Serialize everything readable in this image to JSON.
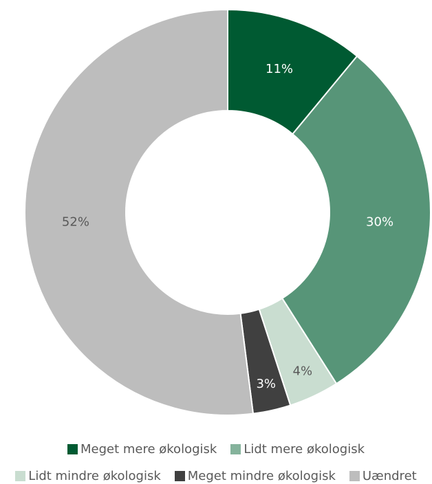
{
  "chart_data": {
    "type": "pie",
    "variant": "donut",
    "title": "",
    "categories": [
      "Meget mere økologisk",
      "Lidt mere økologisk",
      "Lidt mindre økologisk",
      "Meget mindre økologisk",
      "Uændret"
    ],
    "values": [
      11,
      30,
      4,
      3,
      52
    ],
    "value_labels": [
      "11%",
      "30%",
      "4%",
      "3%",
      "52%"
    ],
    "colors": [
      "#005a32",
      "#579578",
      "#c9ddd0",
      "#404040",
      "#bdbdbd"
    ],
    "label_colors": [
      "#ffffff",
      "#ffffff",
      "#595959",
      "#ffffff",
      "#595959"
    ],
    "legend_position": "bottom"
  },
  "legend": [
    {
      "label": "Meget mere økologisk",
      "color": "#005a32"
    },
    {
      "label": "Lidt mere økologisk",
      "color": "#85b39c"
    },
    {
      "label": "Lidt mindre økologisk",
      "color": "#c9ddd0"
    },
    {
      "label": "Meget mindre økologisk",
      "color": "#404040"
    },
    {
      "label": "Uændret",
      "color": "#bdbdbd"
    }
  ]
}
